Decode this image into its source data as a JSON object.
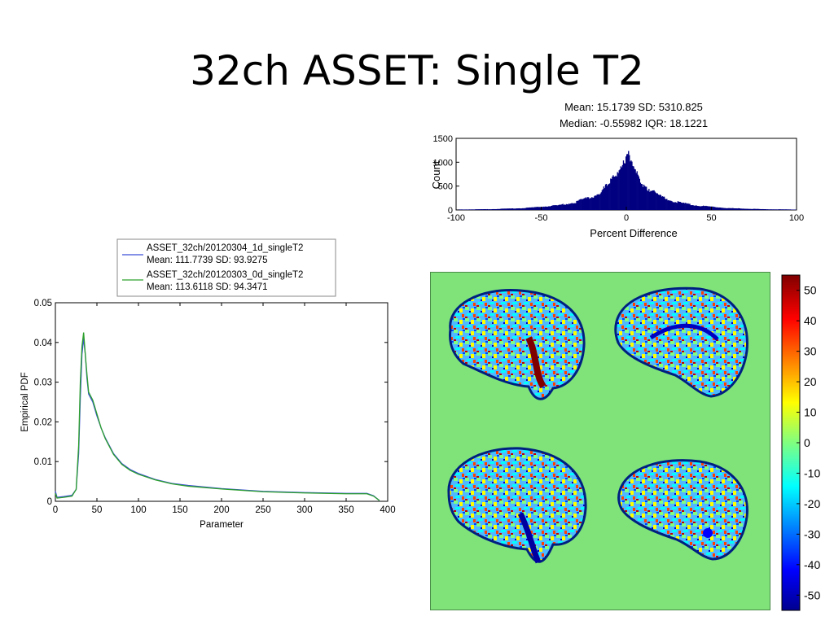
{
  "slide": {
    "title": "32ch ASSET: Single T2"
  },
  "chart_data": [
    {
      "type": "bar",
      "id": "percent-difference-histogram",
      "title_lines": [
        "Mean: 15.1739 SD: 5310.825",
        "Median: -0.55982 IQR: 18.1221"
      ],
      "xlabel": "Percent Difference",
      "ylabel": "Count",
      "xlim": [
        -100,
        100
      ],
      "ylim": [
        0,
        1500
      ],
      "xticks": [
        "-100",
        "-50",
        "0",
        "50",
        "100"
      ],
      "yticks": [
        "0",
        "500",
        "1000",
        "1500"
      ],
      "color": "#000080",
      "peak": {
        "x": 0,
        "y": 1100
      },
      "shape": "laplacian",
      "x": [
        -100,
        -80,
        -60,
        -40,
        -30,
        -20,
        -15,
        -10,
        -5,
        -2,
        0,
        2,
        5,
        10,
        15,
        20,
        30,
        40,
        60,
        80,
        100
      ],
      "values": [
        8,
        15,
        35,
        90,
        150,
        260,
        360,
        500,
        750,
        950,
        1100,
        950,
        750,
        500,
        360,
        260,
        150,
        90,
        35,
        15,
        8
      ]
    },
    {
      "type": "line",
      "id": "empirical-pdf",
      "xlabel": "Parameter",
      "ylabel": "Empirical PDF",
      "xlim": [
        0,
        400
      ],
      "ylim": [
        0,
        0.05
      ],
      "xticks": [
        "0",
        "50",
        "100",
        "150",
        "200",
        "250",
        "300",
        "350",
        "400"
      ],
      "yticks": [
        "0",
        "0.01",
        "0.02",
        "0.03",
        "0.04",
        "0.05"
      ],
      "legend": [
        {
          "name": "ASSET_32ch/20120304_1d_singleT2",
          "stats": "Mean: 111.7739 SD: 93.9275",
          "color": "#3b4fd6"
        },
        {
          "name": "ASSET_32ch/20120303_0d_singleT2",
          "stats": "Mean: 113.6118 SD: 94.3471",
          "color": "#2ca02c"
        }
      ],
      "series": [
        {
          "name": "ASSET_32ch/20120304_1d_singleT2",
          "x": [
            0,
            2,
            10,
            20,
            25,
            28,
            30,
            32,
            34,
            36,
            38,
            40,
            45,
            50,
            55,
            60,
            70,
            80,
            90,
            100,
            120,
            140,
            160,
            200,
            250,
            300,
            350,
            375,
            383,
            390
          ],
          "values": [
            0.0025,
            0.001,
            0.0012,
            0.0015,
            0.003,
            0.012,
            0.026,
            0.037,
            0.041,
            0.037,
            0.031,
            0.027,
            0.025,
            0.0215,
            0.0185,
            0.016,
            0.012,
            0.0095,
            0.008,
            0.007,
            0.0055,
            0.0045,
            0.004,
            0.0032,
            0.0025,
            0.0022,
            0.002,
            0.002,
            0.0014,
            0.0002
          ]
        },
        {
          "name": "ASSET_32ch/20120303_0d_singleT2",
          "x": [
            0,
            2,
            10,
            20,
            25,
            28,
            30,
            32,
            34,
            36,
            38,
            40,
            45,
            50,
            55,
            60,
            70,
            80,
            90,
            100,
            120,
            140,
            160,
            200,
            250,
            300,
            350,
            375,
            383,
            390
          ],
          "values": [
            0.002,
            0.0008,
            0.001,
            0.0013,
            0.003,
            0.014,
            0.03,
            0.039,
            0.0425,
            0.037,
            0.032,
            0.0275,
            0.0255,
            0.022,
            0.0185,
            0.0158,
            0.0118,
            0.0093,
            0.0078,
            0.0068,
            0.0054,
            0.0044,
            0.0038,
            0.0031,
            0.0024,
            0.0021,
            0.0019,
            0.0019,
            0.0013,
            0.0002
          ]
        }
      ]
    },
    {
      "type": "heatmap",
      "id": "difference-maps",
      "colorbar": {
        "range": [
          -55,
          55
        ],
        "ticks": [
          "50",
          "40",
          "30",
          "20",
          "10",
          "0",
          "-10",
          "-20",
          "-30",
          "-40",
          "-50"
        ],
        "colors": [
          "#00008f",
          "#0000ff",
          "#0080ff",
          "#00ffff",
          "#80ff80",
          "#ffff00",
          "#ff8000",
          "#ff0000",
          "#800000"
        ]
      },
      "background_color": "#7fe37a"
    }
  ]
}
